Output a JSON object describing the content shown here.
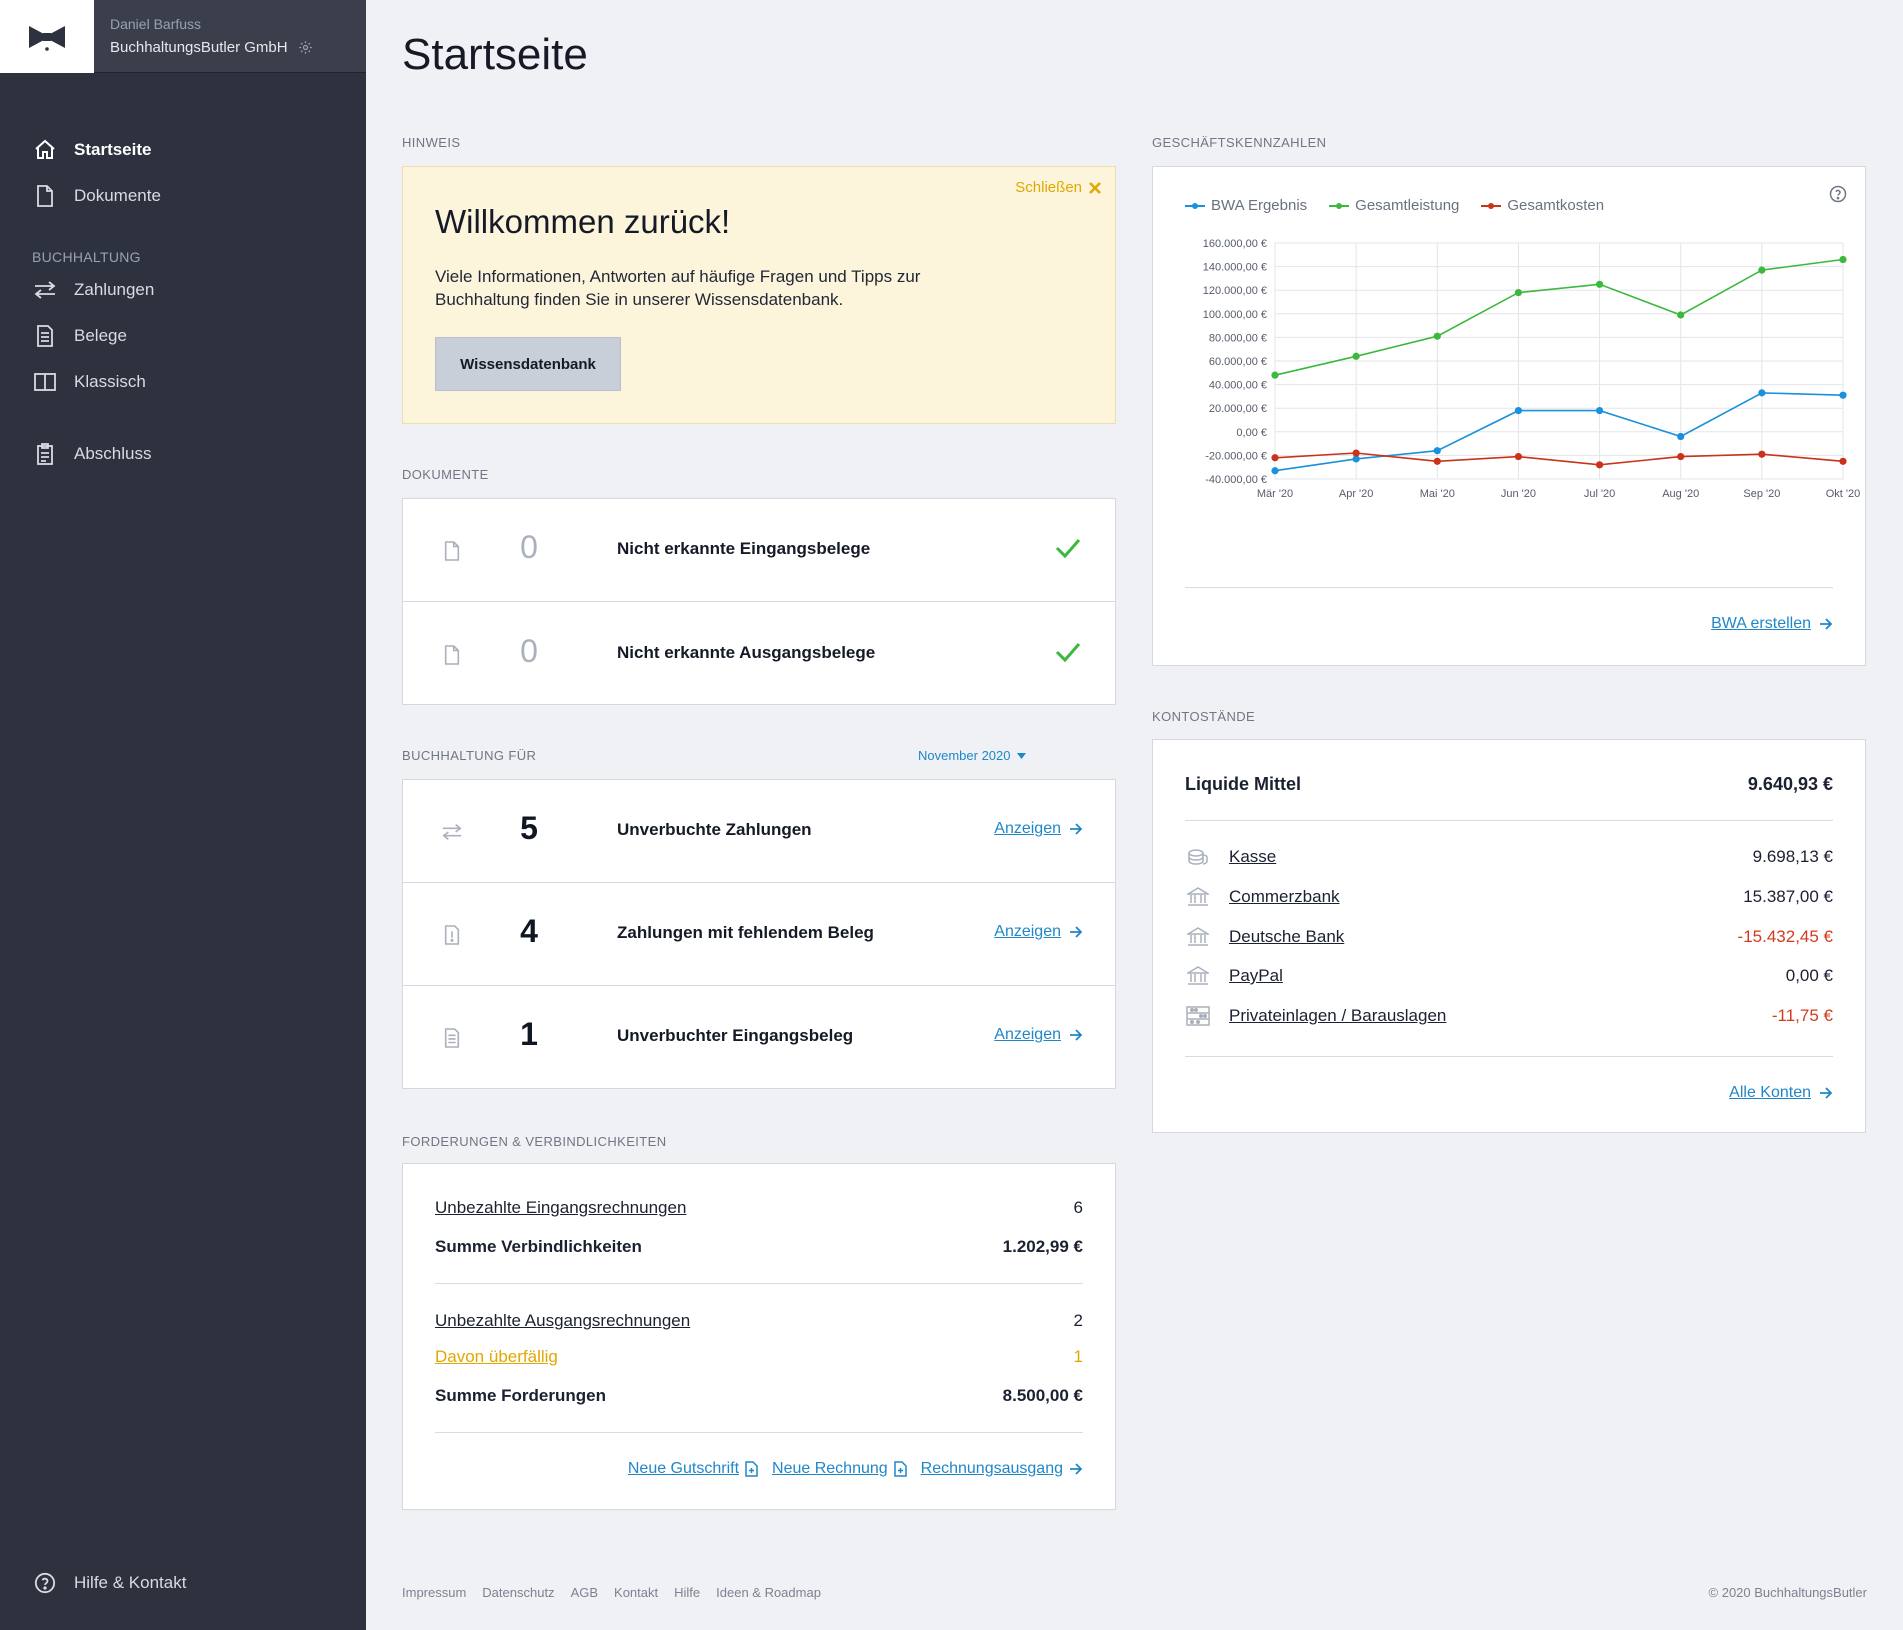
{
  "sidebar": {
    "user": "Daniel Barfuss",
    "company": "BuchhaltungsButler GmbH",
    "items": [
      {
        "label": "Startseite"
      },
      {
        "label": "Dokumente"
      },
      {
        "label": "Zahlungen"
      },
      {
        "label": "Belege"
      },
      {
        "label": "Klassisch"
      },
      {
        "label": "Abschluss"
      }
    ],
    "section_buchhaltung": "BUCHHALTUNG",
    "help": "Hilfe & Kontakt"
  },
  "page": {
    "title": "Startseite"
  },
  "hinweis": {
    "section": "HINWEIS",
    "close": "Schließen",
    "title": "Willkommen zurück!",
    "text": "Viele Informationen, Antworten auf häufige Fragen und Tipps zur Buchhaltung finden Sie in unserer Wissensdatenbank.",
    "button": "Wissensdatenbank"
  },
  "dokumente": {
    "section": "DOKUMENTE",
    "rows": [
      {
        "count": "0",
        "label": "Nicht erkannte Eingangsbelege"
      },
      {
        "count": "0",
        "label": "Nicht erkannte Ausgangsbelege"
      }
    ]
  },
  "buchhaltung": {
    "section": "BUCHHALTUNG FÜR",
    "month": "November 2020",
    "link": "Anzeigen",
    "rows": [
      {
        "count": "5",
        "label": "Unverbuchte Zahlungen"
      },
      {
        "count": "4",
        "label": "Zahlungen mit fehlendem Beleg"
      },
      {
        "count": "1",
        "label": "Unverbuchter Eingangsbeleg"
      }
    ]
  },
  "forderungen": {
    "section": "FORDERUNGEN & VERBINDLICHKEITEN",
    "unpaid_in_label": "Unbezahlte Eingangsrechnungen",
    "unpaid_in_value": "6",
    "sum_verb_label": "Summe Verbindlichkeiten",
    "sum_verb_value": "1.202,99 €",
    "unpaid_out_label": "Unbezahlte Ausgangsrechnungen",
    "unpaid_out_value": "2",
    "overdue_label": "Davon überfällig",
    "overdue_value": "1",
    "sum_ford_label": "Summe Forderungen",
    "sum_ford_value": "8.500,00 €",
    "link_gutschrift": "Neue Gutschrift",
    "link_rechnung": "Neue Rechnung",
    "link_ausgang": "Rechnungsausgang"
  },
  "kennzahlen": {
    "section": "GESCHÄFTSKENNZAHLEN",
    "link": "BWA erstellen"
  },
  "chart_data": {
    "type": "line",
    "x": [
      "Mär '20",
      "Apr '20",
      "Mai '20",
      "Jun '20",
      "Jul '20",
      "Aug '20",
      "Sep '20",
      "Okt '20"
    ],
    "ylim": [
      -40000,
      160000
    ],
    "yticks": [
      "160.000,00 €",
      "140.000,00 €",
      "120.000,00 €",
      "100.000,00 €",
      "80.000,00 €",
      "60.000,00 €",
      "40.000,00 €",
      "20.000,00 €",
      "0,00 €",
      "-20.000,00 €",
      "-40.000,00 €"
    ],
    "legend_position": "top-left",
    "grid": true,
    "series": [
      {
        "name": "BWA Ergebnis",
        "color": "#1a91da",
        "values": [
          -33000,
          -23000,
          -16000,
          18000,
          18000,
          -4000,
          33000,
          31000
        ]
      },
      {
        "name": "Gesamtleistung",
        "color": "#3cb83c",
        "values": [
          48000,
          64000,
          81000,
          118000,
          125000,
          99000,
          137000,
          146000
        ]
      },
      {
        "name": "Gesamtkosten",
        "color": "#c9331a",
        "values": [
          -22000,
          -18000,
          -25000,
          -21000,
          -28000,
          -21000,
          -19000,
          -25000
        ]
      }
    ]
  },
  "konten": {
    "section": "KONTOSTÄNDE",
    "liquid_label": "Liquide Mittel",
    "liquid_value": "9.640,93 €",
    "accounts": [
      {
        "name": "Kasse",
        "value": "9.698,13 €",
        "icon": "coins-icon"
      },
      {
        "name": "Commerzbank",
        "value": "15.387,00 €",
        "icon": "bank-icon"
      },
      {
        "name": "Deutsche Bank",
        "value": "-15.432,45 €",
        "icon": "bank-icon"
      },
      {
        "name": "PayPal",
        "value": "0,00 €",
        "icon": "bank-icon"
      },
      {
        "name": "Privateinlagen / Barauslagen",
        "value": "-11,75 €",
        "icon": "abacus-icon"
      }
    ],
    "link": "Alle Konten"
  },
  "footer": {
    "links": [
      "Impressum",
      "Datenschutz",
      "AGB",
      "Kontakt",
      "Hilfe",
      "Ideen & Roadmap"
    ],
    "copyright": "© 2020 BuchhaltungsButler"
  },
  "colors": {
    "sidebar": "#2d323e",
    "accent": "#1f87c9",
    "warning": "#e0a800",
    "success": "#3cb83c",
    "negative": "#d23b1e"
  }
}
